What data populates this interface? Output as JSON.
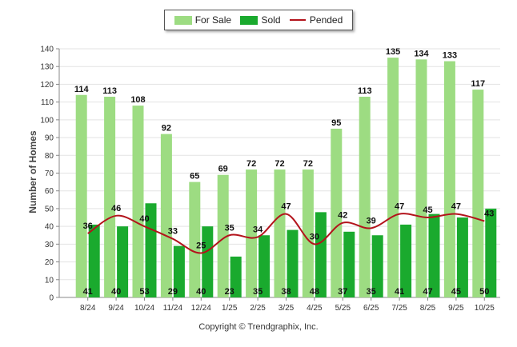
{
  "chart_data": {
    "type": "bar",
    "categories": [
      "8/24",
      "9/24",
      "10/24",
      "11/24",
      "12/24",
      "1/25",
      "2/25",
      "3/25",
      "4/25",
      "5/25",
      "6/25",
      "7/25",
      "8/25",
      "9/25",
      "10/25"
    ],
    "series": [
      {
        "name": "For Sale",
        "type": "bar",
        "color": "#9ddc82",
        "values": [
          114,
          113,
          108,
          92,
          65,
          69,
          72,
          72,
          72,
          95,
          113,
          135,
          134,
          133,
          117
        ]
      },
      {
        "name": "Sold",
        "type": "bar",
        "color": "#1aaa2e",
        "values": [
          41,
          40,
          53,
          29,
          40,
          23,
          35,
          38,
          48,
          37,
          35,
          41,
          47,
          45,
          50
        ]
      },
      {
        "name": "Pended",
        "type": "line",
        "color": "#b3131b",
        "values": [
          36,
          46,
          40,
          33,
          25,
          35,
          34,
          47,
          30,
          42,
          39,
          47,
          45,
          47,
          43
        ]
      }
    ],
    "ylabel": "Number of Homes",
    "xlabel": "",
    "ylim": [
      0,
      140
    ],
    "yticks": [
      0,
      10,
      20,
      30,
      40,
      50,
      60,
      70,
      80,
      90,
      100,
      110,
      120,
      130,
      140
    ],
    "grid": true,
    "legend_position": "top-center"
  },
  "footer": {
    "copyright": "Copyright © Trendgraphix, Inc."
  }
}
